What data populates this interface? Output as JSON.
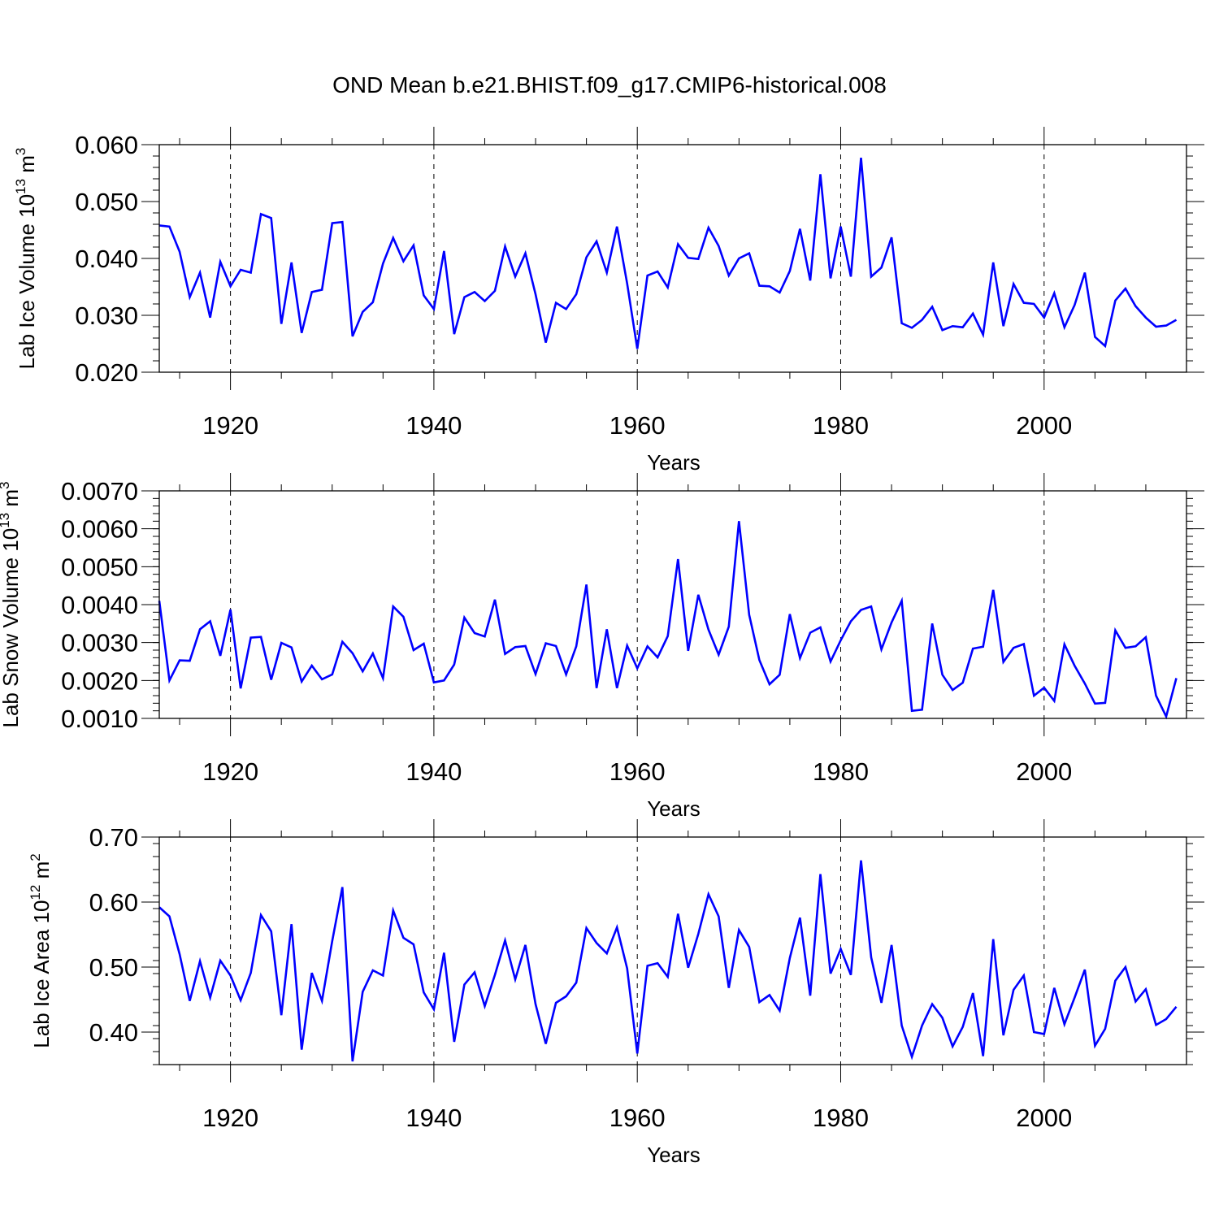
{
  "title": "OND Mean b.e21.BHIST.f09_g17.CMIP6-historical.008",
  "line_color": "#0000ff",
  "chart_data": [
    {
      "type": "line",
      "ylabel": "Lab Ice Volume",
      "ylabel_unit_prefix": "10",
      "ylabel_unit_exp": "13",
      "ylabel_unit_m": "m",
      "ylabel_unit_m_exp": "3",
      "xlabel": "Years",
      "xlim": [
        1913,
        2014
      ],
      "ylim": [
        0.02,
        0.06
      ],
      "yticks": [
        0.02,
        0.03,
        0.04,
        0.05,
        0.06
      ],
      "ytick_labels": [
        "0.020",
        "0.030",
        "0.040",
        "0.050",
        "0.060"
      ],
      "xticks": [
        1920,
        1940,
        1960,
        1980,
        2000
      ],
      "xtick_labels": [
        "1920",
        "1940",
        "1960",
        "1980",
        "2000"
      ],
      "x_start": 1913,
      "values": [
        0.0458,
        0.0456,
        0.0412,
        0.0332,
        0.0375,
        0.0296,
        0.0394,
        0.0351,
        0.038,
        0.0375,
        0.0478,
        0.0471,
        0.0285,
        0.0393,
        0.0269,
        0.0341,
        0.0345,
        0.0462,
        0.0464,
        0.0263,
        0.0306,
        0.0323,
        0.0391,
        0.0436,
        0.0395,
        0.0423,
        0.0335,
        0.0311,
        0.0413,
        0.0267,
        0.0332,
        0.0341,
        0.0325,
        0.0343,
        0.0421,
        0.0368,
        0.0409,
        0.0337,
        0.0252,
        0.0322,
        0.0311,
        0.0337,
        0.0402,
        0.043,
        0.0375,
        0.0456,
        0.0356,
        0.0241,
        0.037,
        0.0377,
        0.0349,
        0.0425,
        0.0401,
        0.0399,
        0.0454,
        0.0422,
        0.037,
        0.04,
        0.0409,
        0.0352,
        0.0351,
        0.034,
        0.0378,
        0.0452,
        0.0361,
        0.0548,
        0.0365,
        0.0456,
        0.0368,
        0.0577,
        0.0368,
        0.0384,
        0.0437,
        0.0286,
        0.0278,
        0.0292,
        0.0315,
        0.0274,
        0.0281,
        0.0279,
        0.0303,
        0.0266,
        0.0393,
        0.0281,
        0.0355,
        0.0322,
        0.032,
        0.0296,
        0.0339,
        0.0279,
        0.0318,
        0.0375,
        0.0262,
        0.0246,
        0.0326,
        0.0347,
        0.0316,
        0.0296,
        0.028,
        0.0282,
        0.0292
      ]
    },
    {
      "type": "line",
      "ylabel": "Lab Snow Volume",
      "ylabel_unit_prefix": "10",
      "ylabel_unit_exp": "13",
      "ylabel_unit_m": "m",
      "ylabel_unit_m_exp": "3",
      "xlabel": "Years",
      "xlim": [
        1913,
        2014
      ],
      "ylim": [
        0.001,
        0.007
      ],
      "yticks": [
        0.001,
        0.002,
        0.003,
        0.004,
        0.005,
        0.006,
        0.007
      ],
      "ytick_labels": [
        "0.0010",
        "0.0020",
        "0.0030",
        "0.0040",
        "0.0050",
        "0.0060",
        "0.0070"
      ],
      "xticks": [
        1920,
        1940,
        1960,
        1980,
        2000
      ],
      "xtick_labels": [
        "1920",
        "1940",
        "1960",
        "1980",
        "2000"
      ],
      "x_start": 1913,
      "values": [
        0.0041,
        0.002,
        0.00253,
        0.00252,
        0.00335,
        0.00356,
        0.00265,
        0.00387,
        0.00179,
        0.00313,
        0.00315,
        0.00202,
        0.00299,
        0.00287,
        0.00197,
        0.00239,
        0.00203,
        0.00216,
        0.00302,
        0.00272,
        0.00224,
        0.00271,
        0.00206,
        0.00395,
        0.00368,
        0.0028,
        0.00297,
        0.00195,
        0.002,
        0.00242,
        0.00366,
        0.00325,
        0.00316,
        0.00413,
        0.0027,
        0.00288,
        0.00291,
        0.00217,
        0.00298,
        0.00291,
        0.00216,
        0.0029,
        0.00453,
        0.0018,
        0.00335,
        0.0018,
        0.00292,
        0.00232,
        0.0029,
        0.00261,
        0.00317,
        0.0052,
        0.00278,
        0.00426,
        0.00334,
        0.00268,
        0.00342,
        0.0062,
        0.00373,
        0.00254,
        0.0019,
        0.00215,
        0.00375,
        0.00259,
        0.00326,
        0.0034,
        0.0025,
        0.00306,
        0.00356,
        0.00386,
        0.00395,
        0.00282,
        0.00353,
        0.0041,
        0.0012,
        0.00123,
        0.0035,
        0.00215,
        0.00175,
        0.00194,
        0.00284,
        0.00289,
        0.00439,
        0.00249,
        0.00286,
        0.00296,
        0.0016,
        0.00181,
        0.00146,
        0.00295,
        0.00239,
        0.00192,
        0.00139,
        0.00141,
        0.00332,
        0.00286,
        0.0029,
        0.00314,
        0.0016,
        0.00105,
        0.00206
      ]
    },
    {
      "type": "line",
      "ylabel": "Lab Ice Area",
      "ylabel_unit_prefix": "10",
      "ylabel_unit_exp": "12",
      "ylabel_unit_m": "m",
      "ylabel_unit_m_exp": "2",
      "xlabel": "Years",
      "xlim": [
        1913,
        2014
      ],
      "ylim": [
        0.35,
        0.7
      ],
      "yticks": [
        0.4,
        0.5,
        0.6,
        0.7
      ],
      "ytick_labels": [
        "0.40",
        "0.50",
        "0.60",
        "0.70"
      ],
      "xticks": [
        1920,
        1940,
        1960,
        1980,
        2000
      ],
      "xtick_labels": [
        "1920",
        "1940",
        "1960",
        "1980",
        "2000"
      ],
      "x_start": 1913,
      "values": [
        0.592,
        0.578,
        0.52,
        0.448,
        0.509,
        0.453,
        0.51,
        0.487,
        0.449,
        0.491,
        0.58,
        0.555,
        0.426,
        0.566,
        0.373,
        0.491,
        0.448,
        0.54,
        0.623,
        0.355,
        0.462,
        0.495,
        0.487,
        0.587,
        0.545,
        0.535,
        0.461,
        0.435,
        0.522,
        0.385,
        0.473,
        0.492,
        0.44,
        0.488,
        0.541,
        0.481,
        0.534,
        0.443,
        0.382,
        0.445,
        0.455,
        0.476,
        0.56,
        0.537,
        0.521,
        0.561,
        0.498,
        0.367,
        0.502,
        0.506,
        0.485,
        0.582,
        0.499,
        0.551,
        0.612,
        0.578,
        0.468,
        0.557,
        0.531,
        0.446,
        0.457,
        0.433,
        0.514,
        0.576,
        0.456,
        0.643,
        0.49,
        0.528,
        0.488,
        0.664,
        0.515,
        0.445,
        0.534,
        0.41,
        0.362,
        0.41,
        0.443,
        0.422,
        0.378,
        0.408,
        0.46,
        0.363,
        0.543,
        0.395,
        0.465,
        0.487,
        0.4,
        0.397,
        0.468,
        0.412,
        0.453,
        0.496,
        0.379,
        0.405,
        0.479,
        0.5,
        0.447,
        0.466,
        0.411,
        0.42,
        0.439
      ]
    }
  ]
}
